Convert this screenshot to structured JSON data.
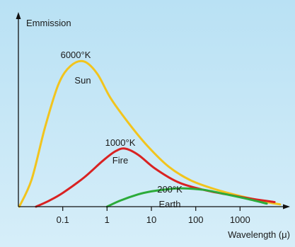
{
  "chart_data": {
    "type": "line",
    "title": "",
    "xlabel": "Wavelength (μ)",
    "ylabel": "Emmission",
    "xscale": "log",
    "xlim": [
      0.01,
      10000
    ],
    "ylim": [
      0,
      1
    ],
    "x_ticks": [
      {
        "value": 0.1,
        "label": "0.1"
      },
      {
        "value": 1,
        "label": "1"
      },
      {
        "value": 10,
        "label": "10"
      },
      {
        "value": 100,
        "label": "100"
      },
      {
        "value": 1000,
        "label": "1000"
      }
    ],
    "grid": false,
    "legend": "none",
    "series": [
      {
        "name": "Sun",
        "temp_label": "6000°K",
        "color": "#f2c41d",
        "x": [
          0.0105,
          0.02,
          0.04,
          0.08,
          0.15,
          0.3,
          0.6,
          1.2,
          3,
          8,
          25,
          80,
          300,
          1000,
          4000,
          8000
        ],
        "y": [
          0.0,
          0.18,
          0.52,
          0.8,
          0.92,
          0.95,
          0.87,
          0.71,
          0.55,
          0.4,
          0.26,
          0.17,
          0.11,
          0.07,
          0.03,
          0.015
        ]
      },
      {
        "name": "Fire",
        "temp_label": "1000°K",
        "color": "#d92222",
        "x": [
          0.025,
          0.05,
          0.1,
          0.3,
          0.8,
          1.5,
          2.5,
          5,
          12,
          40,
          150,
          500,
          2000,
          6000
        ],
        "y": [
          0.0,
          0.04,
          0.09,
          0.19,
          0.3,
          0.36,
          0.38,
          0.34,
          0.25,
          0.16,
          0.11,
          0.08,
          0.05,
          0.03
        ]
      },
      {
        "name": "Earth",
        "temp_label": "200°K",
        "color": "#2cab3a",
        "x": [
          1,
          2,
          5,
          10,
          25,
          50,
          150,
          500,
          1500,
          4000
        ],
        "y": [
          0.0,
          0.04,
          0.08,
          0.1,
          0.115,
          0.12,
          0.11,
          0.08,
          0.05,
          0.02
        ]
      }
    ]
  }
}
